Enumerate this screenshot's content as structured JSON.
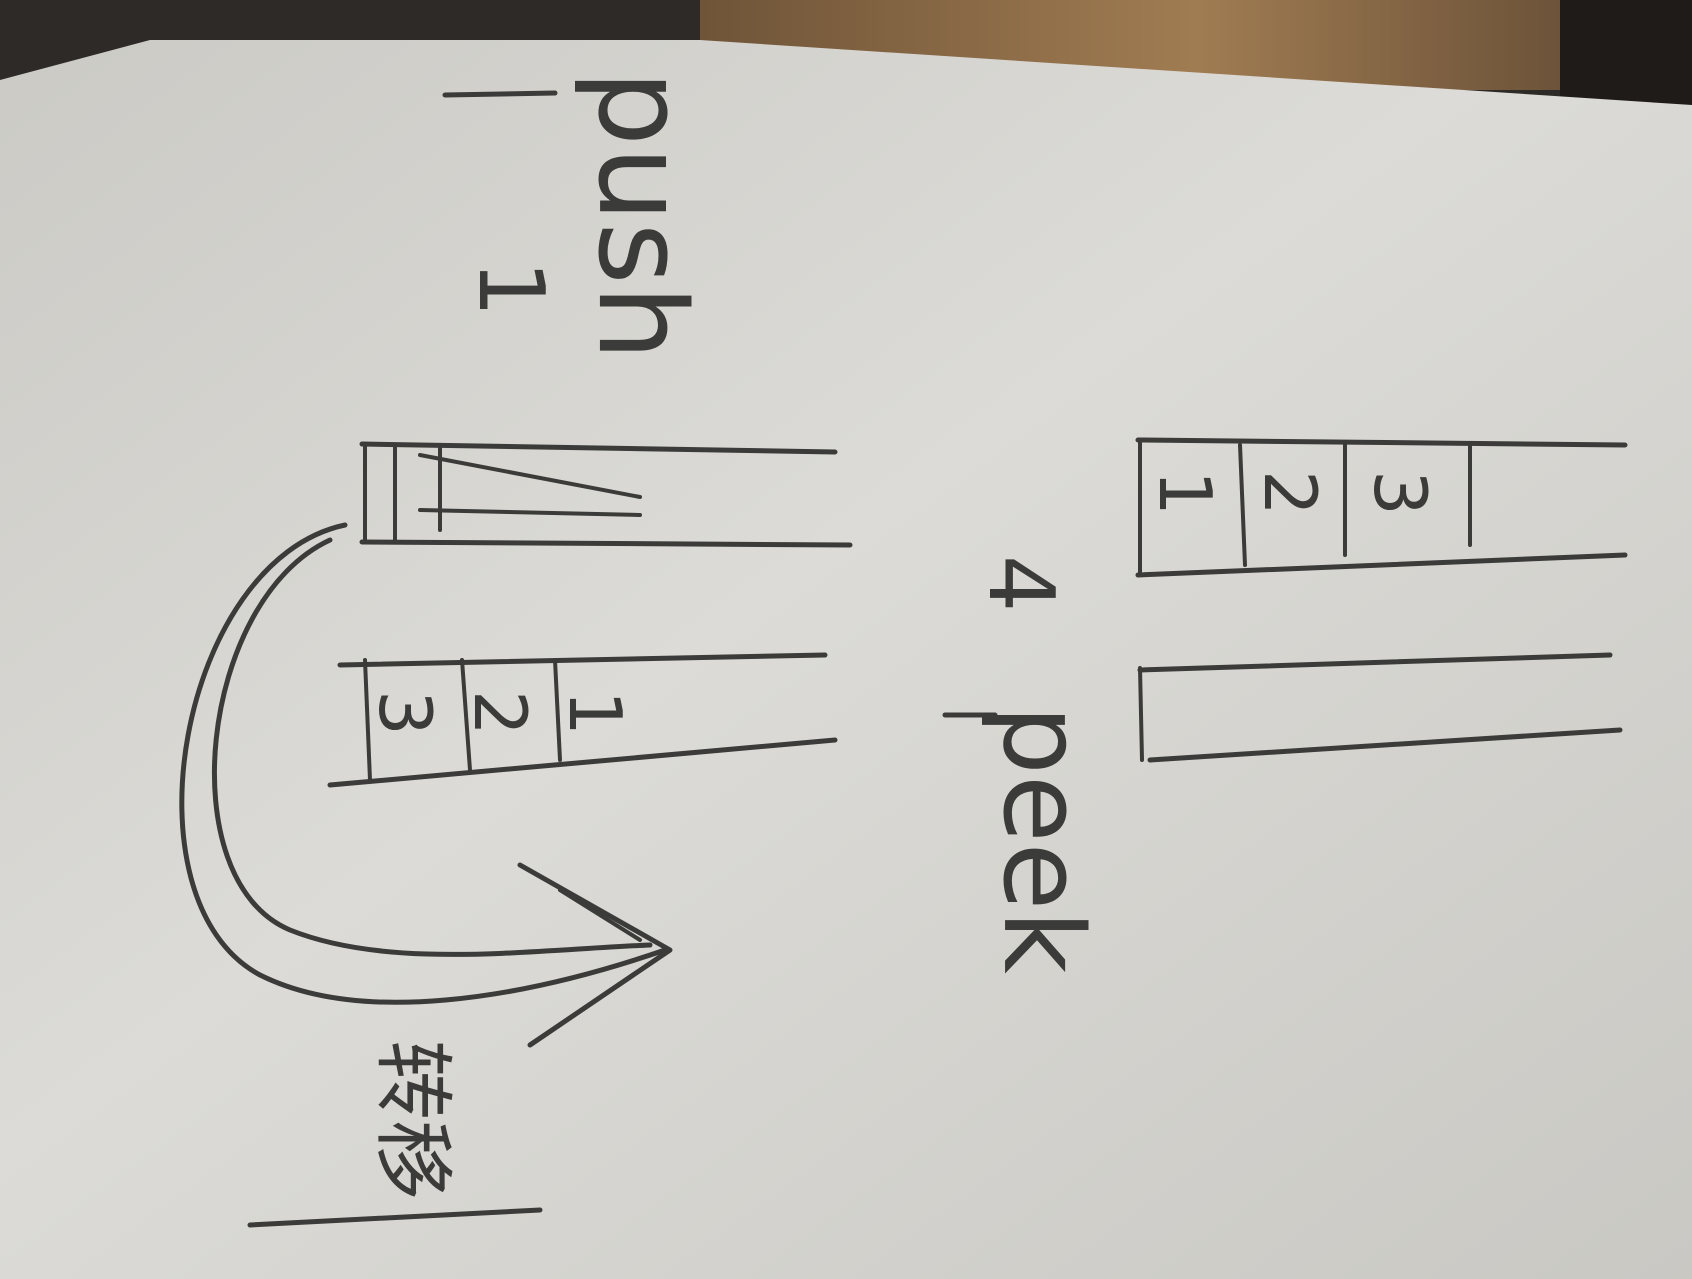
{
  "sketch": {
    "top_stack": {
      "cells": [
        "3",
        "2",
        "1"
      ]
    },
    "bottom_stack": {
      "cells": [
        "3",
        "2",
        "1"
      ]
    },
    "push_label": "push",
    "peek_label": "peek",
    "step_one": "1",
    "step_four": "4",
    "transfer_label": "转移"
  },
  "colors": {
    "paper": "#d6d5d1",
    "ink": "#3b3b39",
    "wood": "#8a6a44",
    "background": "#2e2a27"
  }
}
